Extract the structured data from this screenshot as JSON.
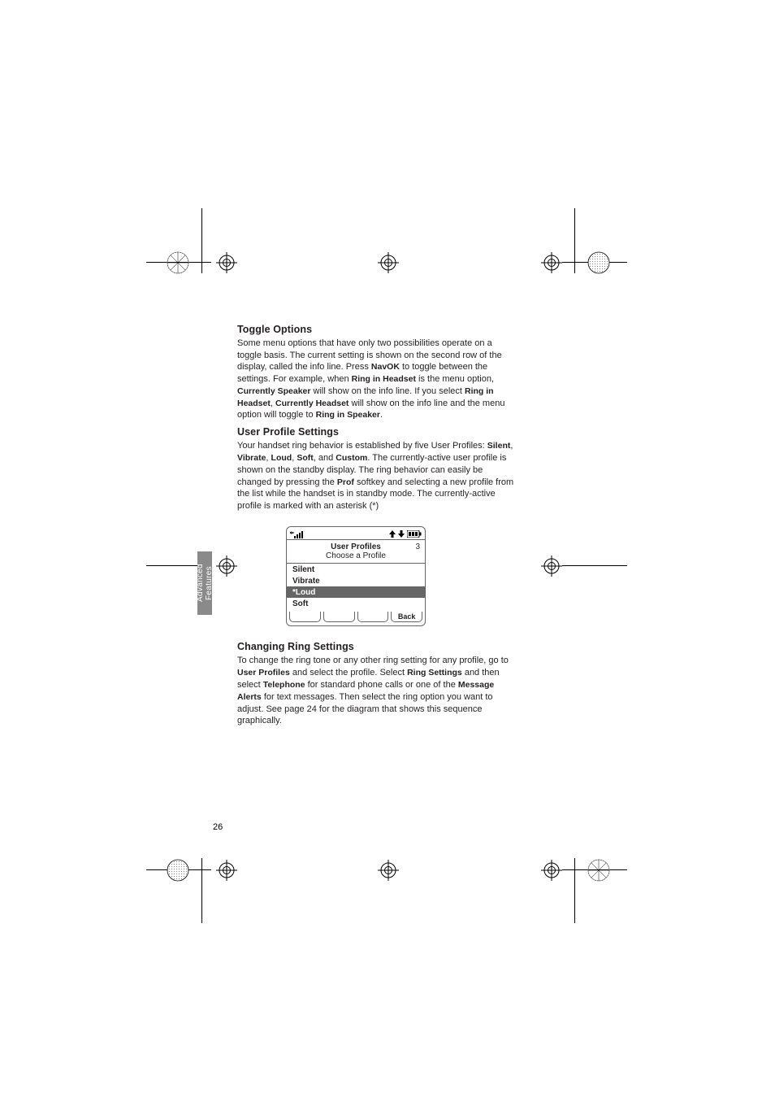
{
  "sidebar_label": "Advanced Features",
  "page_number": "26",
  "sections": {
    "toggle": {
      "heading": "Toggle Options",
      "p1_a": "Some menu options that have only two possibilities operate on a toggle basis. The current setting is shown on the second row of the display, called the info line. Press ",
      "p1_b": "NavOK",
      "p1_c": " to toggle between the settings. For example, when ",
      "p1_d": "Ring in Headset",
      "p1_e": " is the menu option, ",
      "p1_f": "Currently Speaker",
      "p1_g": " will show on the info line. If you select ",
      "p1_h": "Ring in Headset",
      "p1_i": ", ",
      "p1_j": "Currently Headset",
      "p1_k": " will show on the info line and the menu option will toggle to ",
      "p1_l": "Ring in Speaker",
      "p1_m": "."
    },
    "user_profile": {
      "heading": "User Profile Settings",
      "p1_a": "Your handset ring behavior is established by five User Profiles: ",
      "p1_b": "Silent",
      "p1_c": ", ",
      "p1_d": "Vibrate",
      "p1_e": ", ",
      "p1_f": "Loud",
      "p1_g": ", ",
      "p1_h": "Soft",
      "p1_i": ", and ",
      "p1_j": "Custom",
      "p1_k": ". The currently-active user profile is shown on the standby display. The ring behavior can easily be changed by pressing the ",
      "p1_l": "Prof",
      "p1_m": " softkey and selecting a new profile from the list while the handset is in standby mode. The currently-active profile is marked with an asterisk (*)"
    },
    "changing": {
      "heading": "Changing Ring Settings",
      "p1_a": "To change the ring tone or any other ring setting for any profile, go to ",
      "p1_b": "User Profiles",
      "p1_c": " and select the profile. Select ",
      "p1_d": "Ring Settings",
      "p1_e": " and then select ",
      "p1_f": "Telephone",
      "p1_g": " for standard phone calls or one of the ",
      "p1_h": "Message Alerts",
      "p1_i": " for text messages. Then select the ring option you want to adjust. See page 24 for the diagram that shows this sequence graphically."
    }
  },
  "phone": {
    "title": "User Profiles",
    "page_indicator": "3",
    "subtitle": "Choose a Profile",
    "items": [
      "Silent",
      "Vibrate",
      "*Loud",
      "Soft"
    ],
    "selected_index": 2,
    "softkeys": [
      "",
      "",
      "",
      "Back"
    ]
  },
  "colors": {
    "sidebar_bg": "#8a8a8a",
    "text": "#231f20",
    "phone_border": "#666666",
    "phone_sel_bg": "#656565"
  }
}
